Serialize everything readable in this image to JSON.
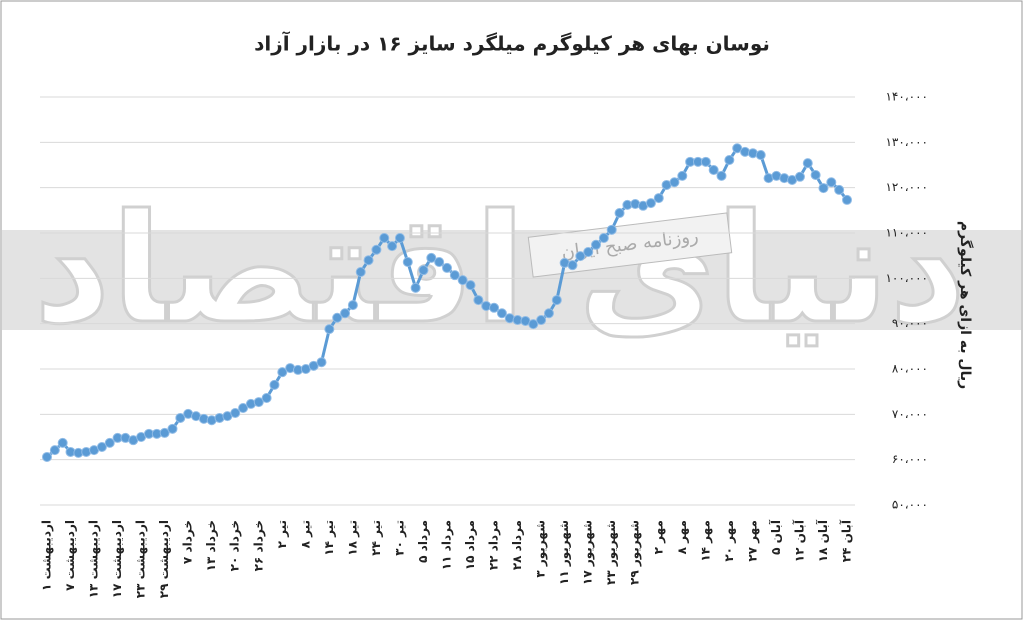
{
  "chart_data": {
    "type": "line",
    "title": "نوسان بهای هر کیلوگرم میلگرد سایز ۱۶ در بازار آزاد",
    "y_label": "ریال به ازای هر کیلوگرم",
    "watermark": [
      "دنیای اقتصاد",
      "روزنامه صبح ایران"
    ],
    "color": "#5b9bd5",
    "grid": true,
    "ylim": [
      50000,
      140000
    ],
    "yticks": [
      {
        "value": 50000,
        "label": "۵۰،۰۰۰"
      },
      {
        "value": 60000,
        "label": "۶۰،۰۰۰"
      },
      {
        "value": 70000,
        "label": "۷۰،۰۰۰"
      },
      {
        "value": 80000,
        "label": "۸۰،۰۰۰"
      },
      {
        "value": 90000,
        "label": "۹۰،۰۰۰"
      },
      {
        "value": 100000,
        "label": "۱۰۰،۰۰۰"
      },
      {
        "value": 110000,
        "label": "۱۱۰،۰۰۰"
      },
      {
        "value": 120000,
        "label": "۱۲۰،۰۰۰"
      },
      {
        "value": 130000,
        "label": "۱۳۰،۰۰۰"
      },
      {
        "value": 140000,
        "label": "۱۴۰،۰۰۰"
      }
    ],
    "categories": [
      "۱ اردیبهشت",
      null,
      null,
      "۷ اردیبهشت",
      null,
      null,
      "۱۳ اردیبهشت",
      null,
      null,
      "۱۷ اردیبهشت",
      null,
      null,
      "۲۳ اردیبهشت",
      null,
      null,
      "۲۹ اردیبهشت",
      null,
      null,
      "۷ خرداد",
      null,
      null,
      "۱۳ خرداد",
      null,
      null,
      "۲۰ خرداد",
      null,
      null,
      "۲۶ خرداد",
      null,
      null,
      "۲ تیر",
      null,
      null,
      "۸ تیر",
      null,
      null,
      "۱۴ تیر",
      null,
      null,
      "۱۸ تیر",
      null,
      null,
      "۲۴ تیر",
      null,
      null,
      "۳۰ تیر",
      null,
      null,
      "۵ مرداد",
      null,
      null,
      "۱۱ مرداد",
      null,
      null,
      "۱۵ مرداد",
      null,
      null,
      "۲۲ مرداد",
      null,
      null,
      "۲۸ مرداد",
      null,
      null,
      "۳ شهریور",
      null,
      null,
      "۱۱ شهریور",
      null,
      null,
      "۱۷ شهریور",
      null,
      null,
      "۲۳ شهریور",
      null,
      null,
      "۲۹ شهریور",
      null,
      null,
      "۲ مهر",
      null,
      null,
      "۸ مهر",
      null,
      null,
      "۱۴ مهر",
      null,
      null,
      "۲۰ مهر",
      null,
      null,
      "۲۷ مهر",
      null,
      null,
      "۵ آبان",
      null,
      null,
      "۱۲ آبان",
      null,
      null,
      "۱۸ آبان",
      null,
      null,
      "۲۴ آبان"
    ],
    "values": [
      60600,
      62100,
      63700,
      61700,
      61500,
      61700,
      62100,
      62800,
      63700,
      64800,
      64800,
      64300,
      65000,
      65700,
      65700,
      65900,
      66800,
      69200,
      70100,
      69600,
      69000,
      68700,
      69200,
      69600,
      70300,
      71400,
      72300,
      72700,
      73600,
      76500,
      79300,
      80200,
      79800,
      80000,
      80700,
      81500,
      88800,
      91300,
      92300,
      94100,
      101400,
      104000,
      106300,
      108900,
      107100,
      108900,
      103600,
      97900,
      101800,
      104500,
      103600,
      102300,
      100700,
      99600,
      98500,
      95200,
      93900,
      93500,
      92300,
      91200,
      90800,
      90600,
      89900,
      90800,
      92300,
      95200,
      103400,
      102900,
      104900,
      105800,
      107400,
      108900,
      110700,
      114400,
      116200,
      116400,
      116000,
      116600,
      117700,
      120600,
      121200,
      122600,
      125700,
      125700,
      125700,
      123900,
      122600,
      126100,
      128700,
      127900,
      127600,
      127200,
      122100,
      122600,
      122100,
      121700,
      122400,
      125400,
      122800,
      119900,
      121200,
      119500,
      117300
    ]
  }
}
